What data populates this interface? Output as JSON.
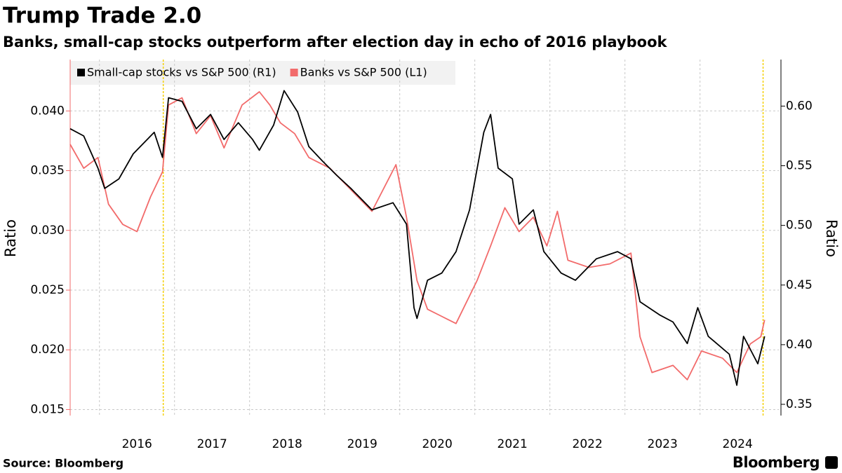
{
  "chart_data": {
    "type": "line",
    "title": "Trump Trade 2.0",
    "subtitle": "Banks, small-cap stocks outperform after election day in echo of 2016 playbook",
    "ylabel": "Ratio",
    "y2label": "Ratio",
    "source": "Source: Bloomberg",
    "brand": "Bloomberg",
    "xlim": [
      2015.61,
      2025.05
    ],
    "xticks": [
      2016,
      2017,
      2018,
      2019,
      2020,
      2021,
      2022,
      2023,
      2024
    ],
    "ylim": [
      0.0145,
      0.0443
    ],
    "yticks": [
      {
        "value": 0.015,
        "label": "0.015"
      },
      {
        "value": 0.02,
        "label": "0.020"
      },
      {
        "value": 0.025,
        "label": "0.025"
      },
      {
        "value": 0.03,
        "label": "0.030"
      },
      {
        "value": 0.035,
        "label": "0.035"
      },
      {
        "value": 0.04,
        "label": "0.040"
      }
    ],
    "y2lim": [
      0.3406,
      0.639
    ],
    "y2ticks": [
      0.35,
      {
        "value": 0.4,
        "label": "0.40"
      },
      0.45,
      {
        "value": 0.5,
        "label": "0.50"
      },
      0.55,
      {
        "value": 0.6,
        "label": "0.60"
      }
    ],
    "grid": true,
    "markers": {
      "color": "#f5d000",
      "x": [
        2016.85,
        2024.84
      ]
    },
    "series": [
      {
        "name": "Small-cap stocks vs S&P 500 (R1)",
        "color": "#000000",
        "axis": "y2",
        "x": [
          2015.61,
          2015.79,
          2015.98,
          2016.07,
          2016.26,
          2016.45,
          2016.73,
          2016.84,
          2016.92,
          2017.1,
          2017.29,
          2017.48,
          2017.66,
          2017.85,
          2018.04,
          2018.13,
          2018.32,
          2018.46,
          2018.64,
          2018.79,
          2018.97,
          2019.16,
          2019.35,
          2019.63,
          2019.91,
          2020.09,
          2020.19,
          2020.23,
          2020.37,
          2020.56,
          2020.75,
          2020.93,
          2021.12,
          2021.21,
          2021.31,
          2021.5,
          2021.59,
          2021.78,
          2021.92,
          2022.15,
          2022.34,
          2022.62,
          2022.9,
          2023.08,
          2023.2,
          2023.46,
          2023.64,
          2023.83,
          2023.97,
          2024.11,
          2024.39,
          2024.49,
          2024.58,
          2024.77,
          2024.86
        ],
        "values": [
          0.581,
          0.575,
          0.548,
          0.531,
          0.539,
          0.56,
          0.578,
          0.557,
          0.607,
          0.604,
          0.581,
          0.593,
          0.572,
          0.586,
          0.572,
          0.563,
          0.584,
          0.613,
          0.595,
          0.566,
          0.554,
          0.542,
          0.531,
          0.513,
          0.519,
          0.501,
          0.431,
          0.422,
          0.454,
          0.46,
          0.478,
          0.513,
          0.578,
          0.593,
          0.548,
          0.539,
          0.501,
          0.513,
          0.478,
          0.46,
          0.454,
          0.472,
          0.478,
          0.472,
          0.436,
          0.425,
          0.419,
          0.401,
          0.431,
          0.407,
          0.392,
          0.366,
          0.407,
          0.384,
          0.407
        ]
      },
      {
        "name": "Banks vs S&P 500 (L1)",
        "color": "#f26b6b",
        "axis": "y",
        "x": [
          2015.61,
          2015.79,
          2015.98,
          2016.12,
          2016.31,
          2016.5,
          2016.68,
          2016.84,
          2016.92,
          2017.1,
          2017.29,
          2017.48,
          2017.66,
          2017.9,
          2018.13,
          2018.27,
          2018.41,
          2018.6,
          2018.79,
          2019.07,
          2019.35,
          2019.63,
          2019.95,
          2020.09,
          2020.23,
          2020.37,
          2020.56,
          2020.75,
          2021.03,
          2021.21,
          2021.4,
          2021.59,
          2021.78,
          2021.96,
          2022.1,
          2022.24,
          2022.52,
          2022.8,
          2023.08,
          2023.2,
          2023.36,
          2023.64,
          2023.83,
          2024.02,
          2024.3,
          2024.49,
          2024.67,
          2024.81,
          2024.86
        ],
        "values": [
          0.0372,
          0.0352,
          0.0361,
          0.0322,
          0.0305,
          0.0299,
          0.0328,
          0.0349,
          0.0405,
          0.0411,
          0.0381,
          0.0396,
          0.0369,
          0.0405,
          0.0416,
          0.0405,
          0.039,
          0.0381,
          0.0361,
          0.0352,
          0.0334,
          0.0316,
          0.0355,
          0.0311,
          0.0258,
          0.0234,
          0.0228,
          0.0222,
          0.0258,
          0.0287,
          0.0319,
          0.0299,
          0.0311,
          0.0287,
          0.0316,
          0.0275,
          0.0269,
          0.0272,
          0.0281,
          0.0211,
          0.0181,
          0.0187,
          0.0175,
          0.0199,
          0.0193,
          0.0181,
          0.0205,
          0.0211,
          0.0225
        ]
      }
    ]
  }
}
